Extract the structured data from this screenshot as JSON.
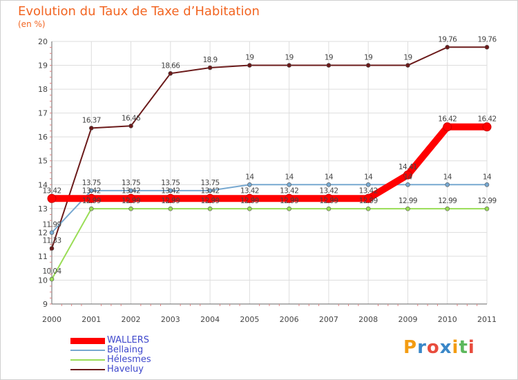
{
  "chart_data": {
    "type": "line",
    "title": "Evolution du Taux de Taxe d’Habitation",
    "ylabel": "(en %)",
    "xlabel": "",
    "x": [
      "2000",
      "2001",
      "2002",
      "2003",
      "2004",
      "2005",
      "2006",
      "2007",
      "2008",
      "2009",
      "2010",
      "2011"
    ],
    "ylim": [
      9,
      20
    ],
    "yticks": [
      "9",
      "10",
      "11",
      "12",
      "13",
      "14",
      "15",
      "16",
      "17",
      "18",
      "19",
      "20"
    ],
    "grid": true,
    "legend_position": "bottom-left",
    "series": [
      {
        "name": "Haveluy",
        "color": "#6b1a1a",
        "values": [
          11.33,
          16.37,
          16.46,
          18.66,
          18.9,
          19,
          19,
          19,
          19,
          19,
          19.76,
          19.76
        ],
        "labels": [
          "11.33",
          "16.37",
          "16.46",
          "18.66",
          "18.9",
          "19",
          "19",
          "19",
          "19",
          "19",
          "19.76",
          "19.76"
        ]
      },
      {
        "name": "Hélesmes",
        "color": "#99dd55",
        "values": [
          10.04,
          12.99,
          12.99,
          12.99,
          12.99,
          12.99,
          12.99,
          12.99,
          12.99,
          12.99,
          12.99,
          12.99
        ],
        "labels": [
          "10.04",
          "12.99",
          "12.99",
          "12.99",
          "12.99",
          "12.99",
          "12.99",
          "12.99",
          "12.99",
          "12.99",
          "12.99",
          "12.99"
        ]
      },
      {
        "name": "Bellaing",
        "color": "#77a8d0",
        "values": [
          11.99,
          13.75,
          13.75,
          13.75,
          13.75,
          14,
          14,
          14,
          14,
          14,
          14,
          14
        ],
        "labels": [
          "11.99",
          "13.75",
          "13.75",
          "13.75",
          "13.75",
          "14",
          "14",
          "14",
          "14",
          "14",
          "14",
          "14"
        ]
      },
      {
        "name": "WALLERS",
        "color": "#ff0000",
        "values": [
          13.42,
          13.42,
          13.42,
          13.42,
          13.42,
          13.42,
          13.42,
          13.42,
          13.42,
          14.41,
          16.42,
          16.42
        ],
        "labels": [
          "13.42",
          "13.42",
          "13.42",
          "13.42",
          "13.42",
          "13.42",
          "13.42",
          "13.42",
          "13.42",
          "14.41",
          "16.42",
          "16.42"
        ]
      }
    ],
    "legend": [
      {
        "name": "WALLERS",
        "color": "#ff0000"
      },
      {
        "name": "Bellaing",
        "color": "#77a8d0"
      },
      {
        "name": "Hélesmes",
        "color": "#99dd55"
      },
      {
        "name": "Haveluy",
        "color": "#6b1a1a"
      }
    ]
  },
  "logo": {
    "letters": [
      "P",
      "r",
      "o",
      "x",
      "i",
      "t",
      "i"
    ],
    "colors": [
      "#f39c12",
      "#3a87c8",
      "#e84c3d",
      "#3a87c8",
      "#f39c12",
      "#5cb85c",
      "#e84c3d"
    ]
  }
}
